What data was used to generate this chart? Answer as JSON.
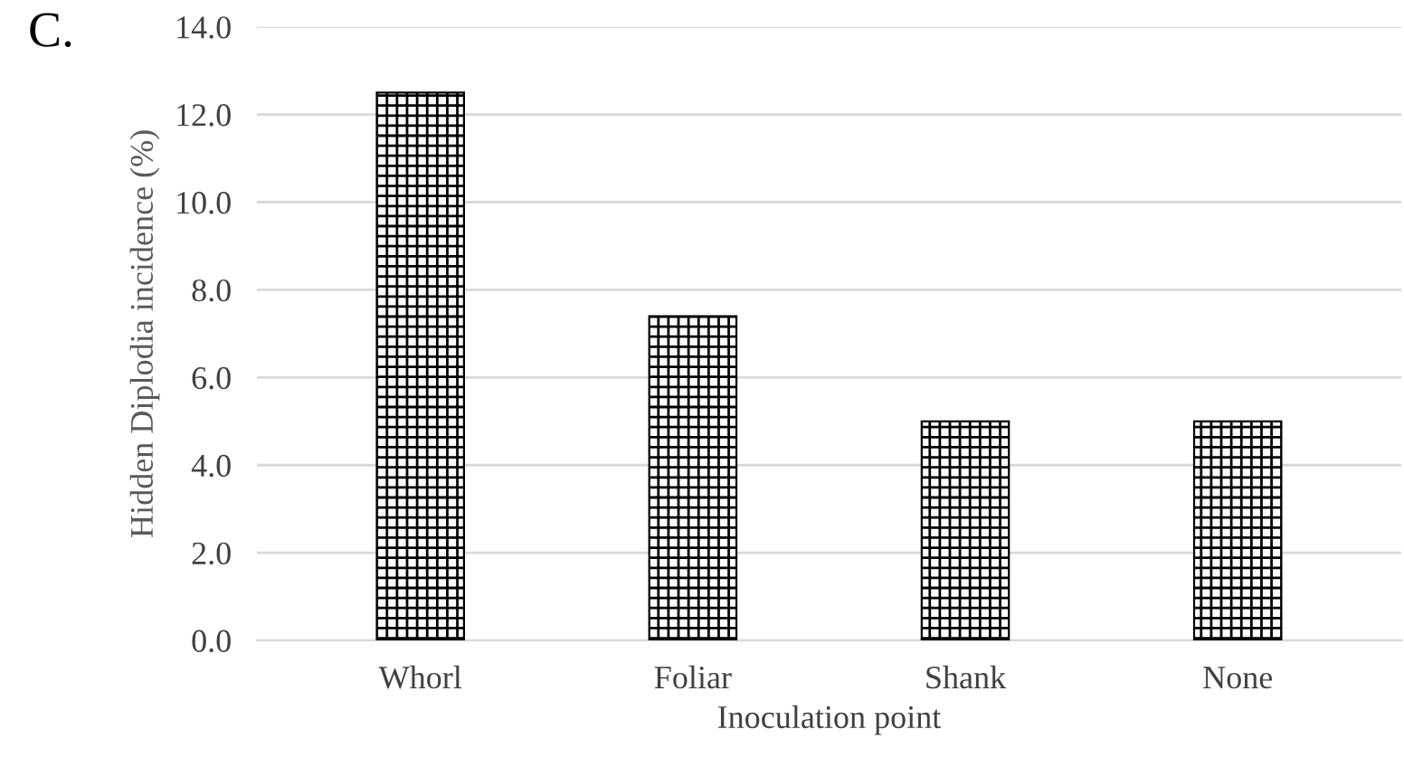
{
  "chart_data": {
    "type": "bar",
    "title": "C.",
    "xlabel": "Inoculation point",
    "ylabel": "Hidden Diplodia incidence (%)",
    "categories": [
      "Whorl",
      "Foliar",
      "Shank",
      "None"
    ],
    "values": [
      12.5,
      7.4,
      5.0,
      5.0
    ],
    "color": "#000000",
    "ylim": [
      0,
      14
    ],
    "yticks": [
      {
        "value": 0,
        "label": "0.0"
      },
      {
        "value": 2,
        "label": "2.0"
      },
      {
        "value": 4,
        "label": "4.0"
      },
      {
        "value": 6,
        "label": "6.0"
      },
      {
        "value": 8,
        "label": "8.0"
      },
      {
        "value": 10,
        "label": "10.0"
      },
      {
        "value": 12,
        "label": "12.0"
      },
      {
        "value": 14,
        "label": "14.0"
      }
    ],
    "grid": "y",
    "legend": false
  }
}
